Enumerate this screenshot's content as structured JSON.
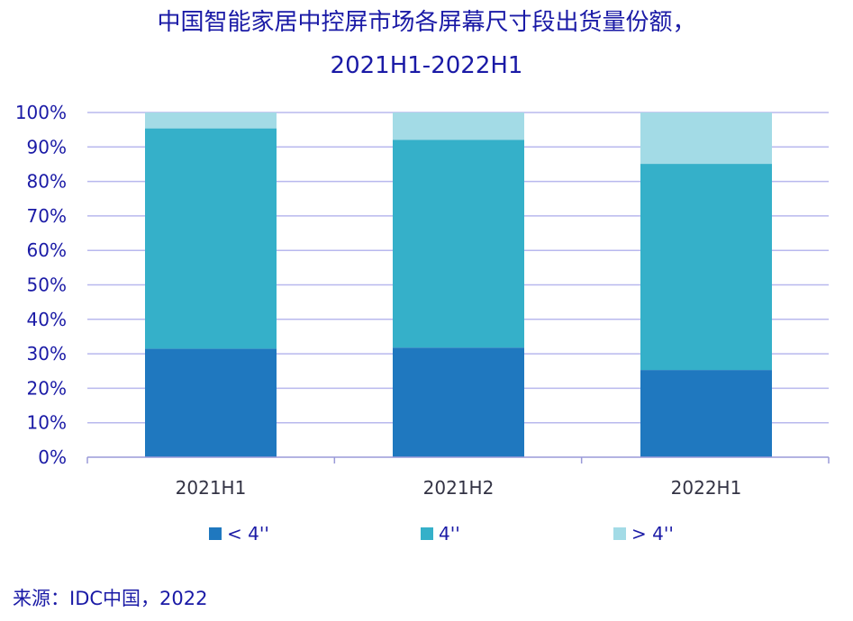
{
  "chart_data": {
    "type": "bar",
    "stacked": true,
    "title": "中国智能家居中控屏市场各屏幕尺寸段出货量份额，",
    "subtitle": "2021H1-2022H1",
    "categories": [
      "2021H1",
      "2021H2",
      "2022H1"
    ],
    "series": [
      {
        "name": "< 4''",
        "color": "#1f78bf",
        "values": [
          31.5,
          31.8,
          25.3
        ]
      },
      {
        "name": "4''",
        "color": "#35b0c9",
        "values": [
          63.9,
          60.3,
          59.8
        ]
      },
      {
        "name": "> 4''",
        "color": "#a3dbe6",
        "values": [
          4.6,
          7.9,
          14.9
        ]
      }
    ],
    "ylim": [
      0,
      100
    ],
    "yticks": [
      "0%",
      "10%",
      "20%",
      "30%",
      "40%",
      "50%",
      "60%",
      "70%",
      "80%",
      "90%",
      "100%"
    ],
    "grid": true,
    "legend_position": "bottom",
    "source": "来源：IDC中国，2022",
    "colors": {
      "text": "#1a1aa6",
      "grid": "#b8b8ee",
      "axis": "#9a9ad8",
      "category_label": "#333344"
    }
  }
}
